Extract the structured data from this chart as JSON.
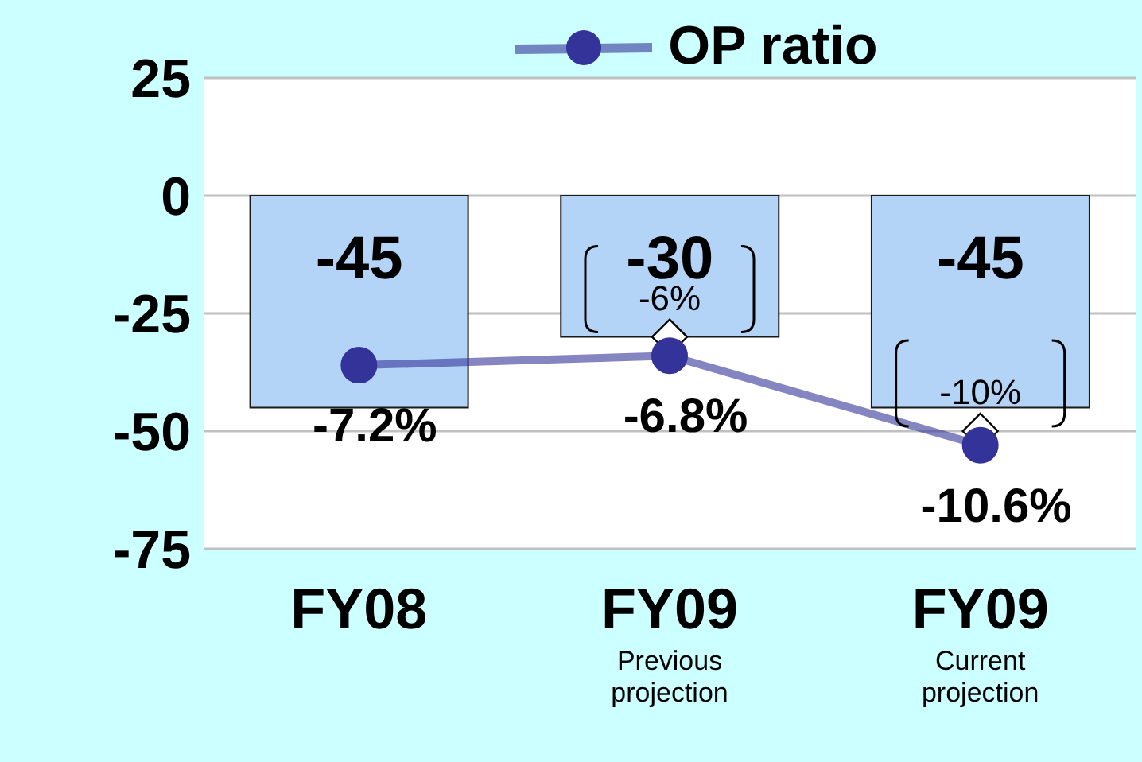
{
  "chart_data": {
    "type": "bar",
    "categories": [
      "FY08",
      "FY09\nPrevious\nprojection",
      "FY09\nCurrent\nprojection"
    ],
    "series": [
      {
        "color": "#b3d4f7",
        "values": [
          -45,
          -30,
          -45
        ]
      },
      {
        "type": "line",
        "name": "OP ratio",
        "axis": "y2",
        "color": "#333399",
        "marker": "circle",
        "values": [
          -7.2,
          -6.8,
          -10.6
        ],
        "value_labels": [
          "-7.2%",
          "-6.8%",
          "-10.6%"
        ]
      },
      {
        "type": "scatter",
        "axis": "y2",
        "color": "#ffffff",
        "marker": "diamond",
        "values": [
          null,
          -6,
          -10
        ],
        "value_labels": [
          null,
          "-6%",
          "-10%"
        ]
      }
    ],
    "ylim": [
      -75,
      25
    ],
    "yticks": [
      25,
      0,
      -25,
      -50,
      -75
    ],
    "y2lim": [
      -15,
      5
    ],
    "grid": "y",
    "legend": "top",
    "data_labels": true
  }
}
